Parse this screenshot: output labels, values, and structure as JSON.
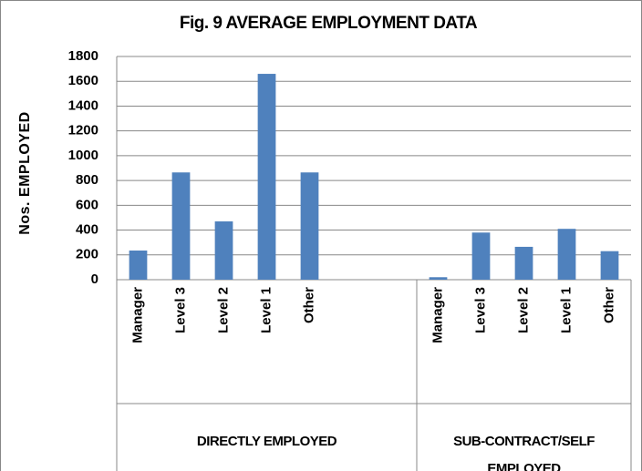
{
  "chart_data": {
    "type": "bar",
    "title": "Fig. 9  AVERAGE EMPLOYMENT DATA",
    "y_label": "Nos. EMPLOYED",
    "categories": [
      "Manager",
      "Level 3",
      "Level 2",
      "Level 1",
      "Other",
      null,
      null,
      "Manager",
      "Level 3",
      "Level 2",
      "Level 1",
      "Other"
    ],
    "values": [
      235,
      865,
      470,
      1660,
      865,
      null,
      null,
      20,
      380,
      265,
      410,
      230
    ],
    "group_labels": [
      "DIRECTLY EMPLOYED",
      "SUB-CONTRACT/SELF EMPLOYED"
    ],
    "color": "#4f81bd",
    "ylim": [
      0,
      1800
    ],
    "yticks": [
      0,
      200,
      400,
      600,
      800,
      1000,
      1200,
      1400,
      1600,
      1800
    ],
    "grid": true
  }
}
